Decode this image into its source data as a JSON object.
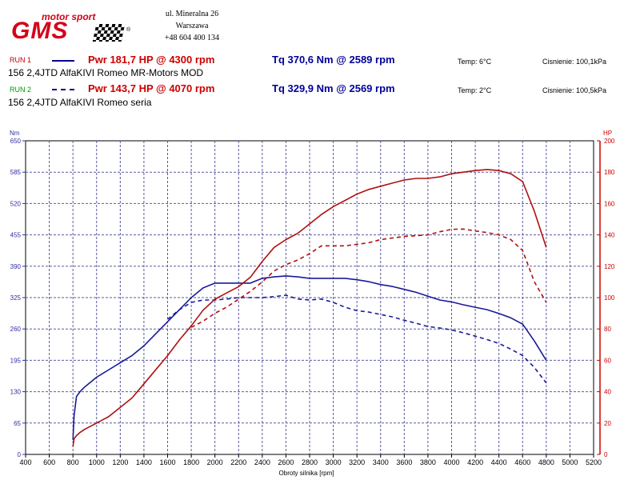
{
  "brand": {
    "top": "motor sport",
    "name": "GMS",
    "reg": "®"
  },
  "address": {
    "line1": "ul. Mineralna 26",
    "line2": "Warszawa",
    "line3": "+48 604 400 134"
  },
  "runs": [
    {
      "label": "RUN 1",
      "line_style": "solid",
      "car": "156 2,4JTD AlfaKIVI Romeo MR-Motors MOD",
      "pwr": "Pwr 181,7 HP @ 4300 rpm",
      "tq": "Tq 370,6 Nm @ 2589 rpm",
      "temp": "Temp: 6°C",
      "pressure": "Cisnienie: 100,1kPa"
    },
    {
      "label": "RUN 2",
      "line_style": "dashed",
      "car": "156 2,4JTD AlfaKIVI Romeo seria",
      "pwr": "Pwr 143,7 HP @ 4070 rpm",
      "tq": "Tq 329,9 Nm @ 2569 rpm",
      "temp": "Temp: 2°C",
      "pressure": "Cisnienie: 100,5kPa"
    }
  ],
  "colors": {
    "torque": "#1a1a99",
    "power": "#b01010",
    "grid": "#5a5aa0",
    "left_axis": "#3030a0",
    "right_axis": "#cc0000"
  },
  "chart_data": {
    "type": "line",
    "xlabel": "Obroty silnika [rpm]",
    "ylabel_left": "Nm",
    "ylabel_right": "HP",
    "xlim": [
      400,
      5200
    ],
    "ylim_left": [
      0,
      650
    ],
    "ylim_right": [
      0,
      200
    ],
    "x_ticks": [
      400,
      600,
      800,
      1000,
      1200,
      1400,
      1600,
      1800,
      2000,
      2200,
      2400,
      2600,
      2800,
      3000,
      3200,
      3400,
      3600,
      3800,
      4000,
      4200,
      4400,
      4600,
      4800,
      5000,
      5200
    ],
    "y_ticks_left": [
      0,
      65,
      130,
      195,
      260,
      325,
      390,
      455,
      520,
      585,
      650
    ],
    "y_ticks_right": [
      0,
      20,
      40,
      60,
      80,
      100,
      120,
      140,
      160,
      180,
      200
    ],
    "grid": true,
    "series": [
      {
        "name": "RUN 1",
        "quantity": "torque",
        "axis": "left",
        "style": "solid",
        "x": [
          800,
          810,
          830,
          860,
          900,
          1000,
          1100,
          1200,
          1300,
          1400,
          1500,
          1600,
          1700,
          1800,
          1900,
          2000,
          2100,
          2200,
          2300,
          2400,
          2500,
          2600,
          2700,
          2800,
          2900,
          3000,
          3100,
          3200,
          3300,
          3400,
          3500,
          3600,
          3700,
          3800,
          3900,
          4000,
          4100,
          4200,
          4300,
          4400,
          4500,
          4600,
          4700,
          4800
        ],
        "values": [
          30,
          80,
          120,
          130,
          140,
          160,
          175,
          190,
          205,
          225,
          250,
          275,
          300,
          325,
          345,
          355,
          355,
          355,
          355,
          365,
          368,
          370,
          368,
          365,
          365,
          365,
          365,
          362,
          358,
          352,
          348,
          342,
          336,
          328,
          320,
          316,
          310,
          305,
          300,
          292,
          283,
          270,
          235,
          195
        ]
      },
      {
        "name": "RUN 2",
        "quantity": "torque",
        "axis": "left",
        "style": "dashed",
        "x": [
          1600,
          1700,
          1800,
          1900,
          2000,
          2100,
          2200,
          2300,
          2400,
          2500,
          2600,
          2700,
          2800,
          2900,
          3000,
          3100,
          3200,
          3300,
          3400,
          3500,
          3600,
          3700,
          3800,
          3900,
          4000,
          4100,
          4200,
          4300,
          4400,
          4500,
          4600,
          4700,
          4800
        ],
        "values": [
          280,
          300,
          315,
          320,
          320,
          322,
          325,
          325,
          325,
          327,
          330,
          322,
          320,
          322,
          315,
          305,
          298,
          295,
          290,
          285,
          278,
          272,
          265,
          262,
          258,
          252,
          245,
          238,
          230,
          218,
          205,
          180,
          148
        ]
      },
      {
        "name": "RUN 1",
        "quantity": "power",
        "axis": "right",
        "style": "solid",
        "x": [
          800,
          810,
          830,
          860,
          900,
          1000,
          1100,
          1200,
          1300,
          1400,
          1500,
          1600,
          1700,
          1800,
          1900,
          2000,
          2100,
          2200,
          2300,
          2400,
          2500,
          2600,
          2700,
          2800,
          2900,
          3000,
          3100,
          3200,
          3300,
          3400,
          3500,
          3600,
          3700,
          3800,
          3900,
          4000,
          4100,
          4200,
          4300,
          4400,
          4500,
          4600,
          4700,
          4800
        ],
        "values": [
          5,
          10,
          12,
          14,
          16,
          20,
          24,
          30,
          36,
          45,
          54,
          63,
          73,
          82,
          92,
          99,
          103,
          107,
          113,
          123,
          132,
          137,
          141,
          147,
          153,
          158,
          162,
          166,
          169,
          171,
          173,
          175,
          176,
          176,
          177,
          179,
          180,
          181,
          181.7,
          181,
          179,
          174,
          155,
          132
        ]
      },
      {
        "name": "RUN 2",
        "quantity": "power",
        "axis": "right",
        "style": "dashed",
        "x": [
          1800,
          1900,
          2000,
          2100,
          2200,
          2300,
          2400,
          2500,
          2600,
          2700,
          2800,
          2900,
          3000,
          3100,
          3200,
          3300,
          3400,
          3500,
          3600,
          3700,
          3800,
          3900,
          4000,
          4100,
          4200,
          4300,
          4400,
          4500,
          4600,
          4700,
          4800
        ],
        "values": [
          81,
          85,
          90,
          94,
          99,
          104,
          110,
          117,
          121,
          124,
          128,
          133,
          133,
          133,
          134,
          135,
          137,
          138,
          139,
          139.5,
          140,
          142,
          143.5,
          143.7,
          142.5,
          141.5,
          140,
          137,
          130,
          110,
          97
        ]
      }
    ]
  }
}
